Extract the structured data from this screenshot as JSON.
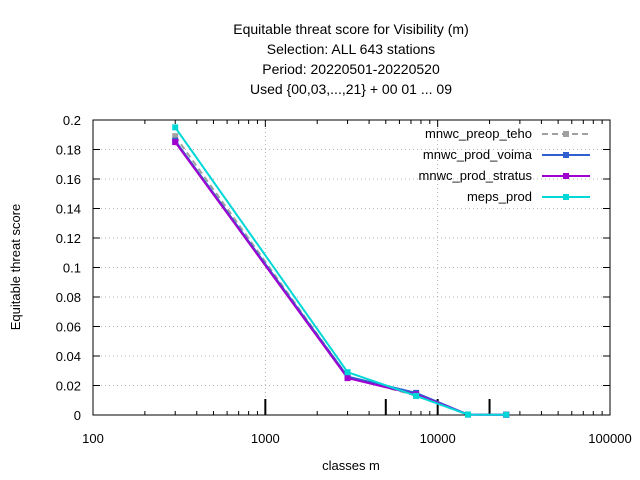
{
  "chart_data": {
    "type": "line",
    "title_lines": [
      "Equitable threat score  for Visibility (m)",
      "Selection: ALL    643 stations",
      "Period: 20220501-20220520",
      "Used {00,03,...,21} + 00 01 ... 09"
    ],
    "xlabel": "classes m",
    "ylabel": "Equitable threat score",
    "xscale": "log",
    "xlim": [
      100,
      100000
    ],
    "ylim": [
      0,
      0.2
    ],
    "x_ticks": [
      100,
      1000,
      10000,
      100000
    ],
    "x_tick_labels": [
      "100",
      "1000",
      "10000",
      "100000"
    ],
    "y_ticks": [
      0,
      0.02,
      0.04,
      0.06,
      0.08,
      0.1,
      0.12,
      0.14,
      0.16,
      0.18,
      0.2
    ],
    "y_tick_labels": [
      "0",
      "0.02",
      "0.04",
      "0.06",
      "0.08",
      "0.1",
      "0.12",
      "0.14",
      "0.16",
      "0.18",
      "0.2"
    ],
    "grid": true,
    "legend_position": "top-right",
    "class_markers_x": [
      1000,
      5000,
      10000,
      20000
    ],
    "series": [
      {
        "name": "mnwc_preop_teho",
        "color": "#a0a0a0",
        "dashed": true,
        "x": [
          300,
          3000,
          7500,
          15000,
          25000
        ],
        "y": [
          0.189,
          0.026,
          0.013,
          0.0003,
          0.0002
        ]
      },
      {
        "name": "mnwc_prod_voima",
        "color": "#3060d0",
        "dashed": false,
        "x": [
          300,
          3000,
          7500,
          15000,
          25000
        ],
        "y": [
          0.186,
          0.026,
          0.015,
          0.0003,
          0.0002
        ]
      },
      {
        "name": "mnwc_prod_stratus",
        "color": "#a000d0",
        "dashed": false,
        "x": [
          300,
          3000,
          7500,
          15000,
          25000
        ],
        "y": [
          0.185,
          0.025,
          0.014,
          0.0003,
          0.0002
        ]
      },
      {
        "name": "meps_prod",
        "color": "#00d8d8",
        "dashed": false,
        "x": [
          300,
          3000,
          7500,
          15000,
          25000
        ],
        "y": [
          0.195,
          0.029,
          0.013,
          0.0003,
          0.0002
        ]
      }
    ]
  }
}
